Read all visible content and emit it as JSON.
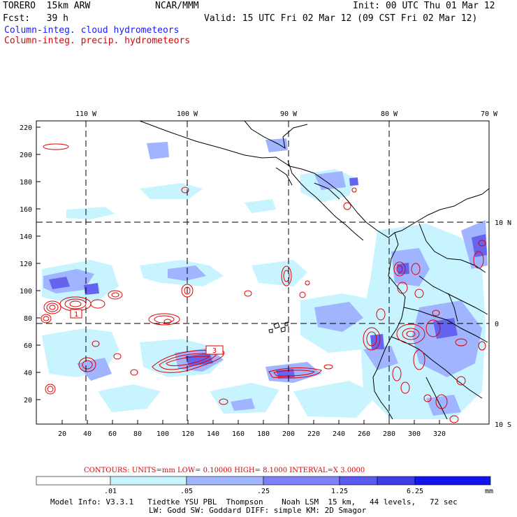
{
  "header": {
    "model": "TORERO  15km ARW",
    "center": "NCAR/MMM",
    "init": "Init: 00 UTC Thu 01 Mar 12",
    "fcst": "Fcst:   39 h",
    "valid": "Valid: 15 UTC Fri 02 Mar 12 (09 CST Fri 02 Mar 12)",
    "field1": "Column-integ. cloud hydrometeors",
    "field2": "Column-integ. precip. hydrometeors"
  },
  "colors": {
    "cloud_light": "#c8f4ff",
    "cloud_mid": "#a0b4ff",
    "cloud_dark": "#6464f0",
    "precip": "#e00000",
    "text_blue": "#1a1aff"
  },
  "axes": {
    "lon_labels": [
      "110 W",
      "100 W",
      "90 W",
      "80 W",
      "70 W"
    ],
    "lat_labels": [
      "10 N",
      "0",
      "10 S"
    ],
    "y_ticks": [
      "220",
      "200",
      "180",
      "160",
      "140",
      "120",
      "100",
      "80",
      "60",
      "40",
      "20"
    ],
    "x_ticks": [
      "20",
      "40",
      "60",
      "80",
      "100",
      "120",
      "140",
      "160",
      "180",
      "200",
      "220",
      "240",
      "260",
      "280",
      "300",
      "320"
    ]
  },
  "contour_labels": [
    "1",
    "3"
  ],
  "contours_line": "CONTOURS:  UNITS=mm  LOW= 0.10000      HIGH=  8.1000      INTERVAL=X  3.0000",
  "legend": {
    "values": [
      ".01",
      ".05",
      ".25",
      "1.25",
      "6.25"
    ],
    "unit": "mm",
    "colors": [
      "#ffffff",
      "#c8f4ff",
      "#a0b4ff",
      "#8080f8",
      "#5a5af0",
      "#3c3ce8",
      "#1414f0"
    ]
  },
  "footer": {
    "line1": "Model Info: V3.3.1   Tiedtke YSU PBL  Thompson    Noah LSM  15 km,   44 levels,   72 sec",
    "line2": "LW: Godd SW: Goddard DIFF: simple KM: 2D Smagor"
  }
}
